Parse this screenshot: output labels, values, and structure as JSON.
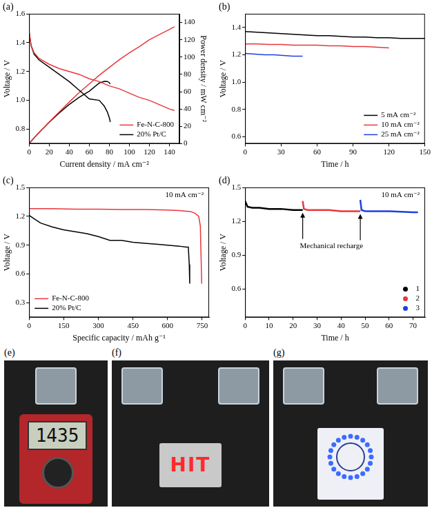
{
  "chart_data": [
    {
      "label": "(a)",
      "type": "line",
      "xlabel": "Current density / mA cm⁻²",
      "ylabel": "Voltage / V",
      "y2label": "Power density / mW cm⁻²",
      "xlim": [
        0,
        150
      ],
      "xticks": [
        0,
        20,
        40,
        60,
        80,
        100,
        120,
        140
      ],
      "ylim": [
        0.7,
        1.6
      ],
      "yticks": [
        0.8,
        {
          "value": 1,
          "label": "1.0"
        },
        1.2,
        1.4,
        1.6
      ],
      "y2lim": [
        0,
        150
      ],
      "y2ticks": [
        0,
        20,
        40,
        60,
        80,
        100,
        120,
        140
      ],
      "grid": false,
      "legend": "lower right",
      "series": [
        {
          "name": "Fe-N-C-800",
          "color": "#e8363a",
          "x": [
            0,
            2,
            5,
            10,
            20,
            30,
            40,
            50,
            60,
            70,
            80,
            90,
            100,
            110,
            120,
            130,
            140,
            145
          ],
          "values": [
            1.48,
            1.38,
            1.33,
            1.29,
            1.25,
            1.22,
            1.2,
            1.18,
            1.15,
            1.13,
            1.1,
            1.08,
            1.05,
            1.02,
            1.0,
            0.97,
            0.94,
            0.93
          ]
        },
        {
          "name": "20% Pt/C",
          "color": "#000000",
          "x": [
            0,
            2,
            5,
            10,
            20,
            30,
            40,
            50,
            60,
            70,
            75,
            78,
            80,
            81
          ],
          "values": [
            1.47,
            1.38,
            1.32,
            1.28,
            1.23,
            1.18,
            1.13,
            1.07,
            1.01,
            1.0,
            0.96,
            0.92,
            0.88,
            0.85
          ]
        },
        {
          "name": "Fe-N-C-800",
          "color": "#e8363a",
          "axis": "y2",
          "x": [
            0,
            2,
            5,
            10,
            20,
            30,
            40,
            50,
            60,
            70,
            80,
            90,
            100,
            110,
            120,
            130,
            140,
            145
          ],
          "values": [
            0,
            2.8,
            6.7,
            12.9,
            25,
            36.6,
            48,
            59,
            69,
            79,
            88,
            97,
            105,
            112,
            120,
            126,
            132,
            135
          ]
        },
        {
          "name": "20% Pt/C",
          "color": "#000000",
          "axis": "y2",
          "x": [
            0,
            2,
            5,
            10,
            20,
            30,
            40,
            50,
            60,
            70,
            75,
            78,
            80,
            81
          ],
          "values": [
            0,
            2.8,
            6.6,
            12.8,
            24.6,
            35.4,
            45.2,
            53.5,
            60.6,
            70,
            72,
            71.8,
            70.4,
            68.9
          ]
        }
      ]
    },
    {
      "label": "(b)",
      "type": "line",
      "xlabel": "Time / h",
      "ylabel": "Voltage / V",
      "xlim": [
        0,
        150
      ],
      "xticks": [
        0,
        30,
        60,
        90,
        120,
        150
      ],
      "ylim": [
        0.55,
        1.5
      ],
      "yticks": [
        0.6,
        0.8,
        {
          "value": 1,
          "label": "1.0"
        },
        1.2,
        1.4
      ],
      "grid": false,
      "legend": "lower right",
      "series": [
        {
          "name": "5 mA cm⁻²",
          "color": "#000000",
          "x": [
            0,
            10,
            20,
            30,
            40,
            50,
            60,
            70,
            80,
            90,
            100,
            110,
            120,
            130,
            140,
            150
          ],
          "values": [
            1.37,
            1.365,
            1.36,
            1.355,
            1.35,
            1.345,
            1.34,
            1.34,
            1.335,
            1.33,
            1.33,
            1.325,
            1.325,
            1.32,
            1.32,
            1.32
          ]
        },
        {
          "name": "10 mA cm⁻²",
          "color": "#e8363a",
          "x": [
            0,
            10,
            20,
            30,
            40,
            50,
            60,
            70,
            80,
            90,
            100,
            110,
            120
          ],
          "values": [
            1.28,
            1.28,
            1.275,
            1.275,
            1.27,
            1.27,
            1.27,
            1.265,
            1.265,
            1.26,
            1.26,
            1.255,
            1.25
          ]
        },
        {
          "name": "25 mA cm⁻²",
          "color": "#1f3fdf",
          "x": [
            0,
            8,
            16,
            24,
            32,
            40,
            48
          ],
          "values": [
            1.21,
            1.205,
            1.2,
            1.2,
            1.195,
            1.19,
            1.19
          ]
        }
      ]
    },
    {
      "label": "(c)",
      "type": "line",
      "xlabel": "Specific capacity / mAh g⁻¹",
      "ylabel": "Voltage / V",
      "xlim": [
        0,
        780
      ],
      "xticks": [
        0,
        150,
        300,
        450,
        600,
        750
      ],
      "ylim": [
        0.15,
        1.5
      ],
      "yticks": [
        0.3,
        0.6,
        0.9,
        1.2,
        1.5
      ],
      "grid": false,
      "legend": "lower left",
      "annotations": [
        {
          "text": "10 mA cm⁻²",
          "position": "upper right"
        }
      ],
      "series": [
        {
          "name": "Fe-N-C-800",
          "color": "#e8363a",
          "x": [
            0,
            50,
            100,
            200,
            300,
            400,
            500,
            600,
            650,
            700,
            720,
            735,
            742,
            745,
            748
          ],
          "values": [
            1.28,
            1.28,
            1.28,
            1.275,
            1.275,
            1.27,
            1.27,
            1.265,
            1.26,
            1.25,
            1.23,
            1.2,
            1.1,
            0.8,
            0.5
          ]
        },
        {
          "name": "20% Pt/C",
          "color": "#000000",
          "x": [
            0,
            25,
            50,
            100,
            150,
            200,
            250,
            300,
            350,
            400,
            450,
            500,
            550,
            600,
            650,
            680,
            690,
            694,
            696
          ],
          "values": [
            1.21,
            1.17,
            1.13,
            1.09,
            1.06,
            1.04,
            1.02,
            0.99,
            0.95,
            0.95,
            0.93,
            0.92,
            0.91,
            0.9,
            0.89,
            0.88,
            0.88,
            0.7,
            0.5
          ]
        }
      ]
    },
    {
      "label": "(d)",
      "type": "line",
      "xlabel": "Time / h",
      "ylabel": "Voltage / V",
      "xlim": [
        0,
        75
      ],
      "xticks": [
        0,
        10,
        20,
        30,
        40,
        50,
        60,
        70
      ],
      "ylim": [
        0.35,
        1.5
      ],
      "yticks": [
        0.6,
        0.9,
        1.2,
        1.5
      ],
      "grid": false,
      "legend": "lower right",
      "annotations": [
        {
          "text": "10 mA cm⁻²",
          "position": "upper right"
        },
        {
          "text": "Mechanical recharge",
          "arrows_x": [
            24,
            48
          ]
        }
      ],
      "series": [
        {
          "name": "1",
          "color": "#000000",
          "marker": "circle",
          "x": [
            0,
            1,
            3,
            6,
            10,
            15,
            20,
            24
          ],
          "values": [
            1.38,
            1.33,
            1.32,
            1.32,
            1.31,
            1.31,
            1.3,
            1.3
          ]
        },
        {
          "name": "2",
          "color": "#e8363a",
          "marker": "circle",
          "x": [
            24,
            24.5,
            26,
            30,
            35,
            40,
            45,
            48
          ],
          "values": [
            1.38,
            1.31,
            1.3,
            1.3,
            1.3,
            1.29,
            1.29,
            1.29
          ]
        },
        {
          "name": "3",
          "color": "#1f3fdf",
          "marker": "circle",
          "x": [
            48,
            48.5,
            50,
            55,
            60,
            65,
            70,
            72
          ],
          "values": [
            1.39,
            1.3,
            1.29,
            1.29,
            1.29,
            1.285,
            1.28,
            1.28
          ]
        }
      ]
    }
  ],
  "photos": [
    {
      "label": "(e)",
      "display": "1435"
    },
    {
      "label": "(f)",
      "sign": "HIT"
    },
    {
      "label": "(g)"
    }
  ]
}
